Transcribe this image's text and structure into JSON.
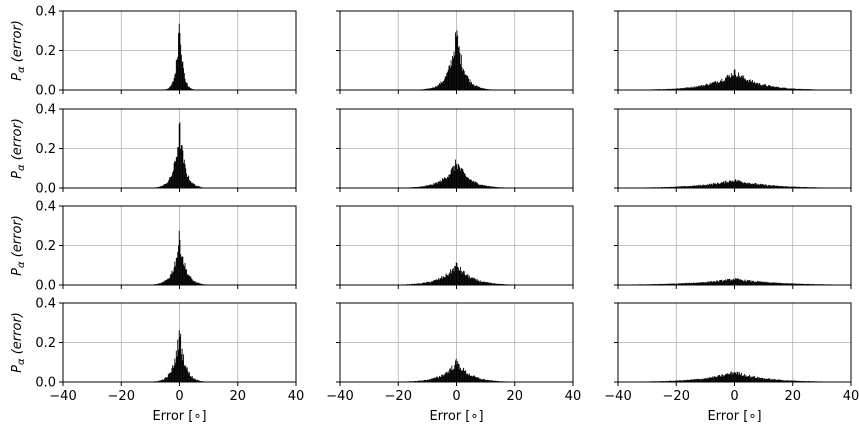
{
  "chart_data": {
    "type": "bar",
    "layout": "4 rows x 3 columns grid of histograms",
    "xlim": [
      -40,
      40
    ],
    "ylim": [
      0,
      0.4
    ],
    "x_ticks": [
      "−40",
      "−20",
      "0",
      "20",
      "40"
    ],
    "y_ticks": [
      "0.0",
      "0.2",
      "0.4"
    ],
    "xlabel": "Error [∘]",
    "ylabel": "P",
    "ylabel_sub": "α",
    "ylabel_arg": "(error)",
    "grid": true,
    "bar_color": "#000000",
    "grid_color": "#b0b0b0",
    "panels": [
      {
        "row": 1,
        "col": 1,
        "center": 0,
        "peak": 0.4,
        "width": 1.0
      },
      {
        "row": 1,
        "col": 2,
        "center": 0,
        "peak": 0.28,
        "width": 2.6
      },
      {
        "row": 1,
        "col": 3,
        "center": 0,
        "peak": 0.09,
        "width": 8.0
      },
      {
        "row": 2,
        "col": 1,
        "center": 0,
        "peak": 0.3,
        "width": 1.8
      },
      {
        "row": 2,
        "col": 2,
        "center": 0,
        "peak": 0.13,
        "width": 4.2
      },
      {
        "row": 2,
        "col": 3,
        "center": 0,
        "peak": 0.04,
        "width": 11.0
      },
      {
        "row": 3,
        "col": 1,
        "center": 0,
        "peak": 0.24,
        "width": 2.0
      },
      {
        "row": 3,
        "col": 2,
        "center": 0,
        "peak": 0.1,
        "width": 5.0
      },
      {
        "row": 3,
        "col": 3,
        "center": 0,
        "peak": 0.03,
        "width": 14.0
      },
      {
        "row": 4,
        "col": 1,
        "center": 0,
        "peak": 0.25,
        "width": 1.9
      },
      {
        "row": 4,
        "col": 2,
        "center": 0,
        "peak": 0.1,
        "width": 4.6
      },
      {
        "row": 4,
        "col": 3,
        "center": 0,
        "peak": 0.05,
        "width": 10.0
      }
    ]
  }
}
